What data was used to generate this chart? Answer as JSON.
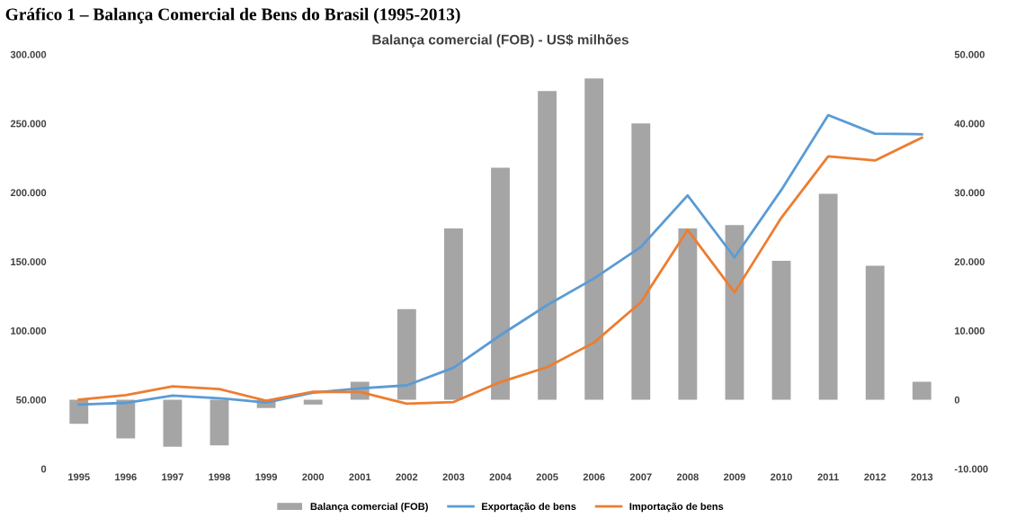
{
  "chart_data": {
    "type": "bar",
    "title": "Balança comercial (FOB) - US$ milhões",
    "annotations": [
      "Gráfico 1 – Balança Comercial de Bens do Brasil (1995-2013)"
    ],
    "categories": [
      "1995",
      "1996",
      "1997",
      "1998",
      "1999",
      "2000",
      "2001",
      "2002",
      "2003",
      "2004",
      "2005",
      "2006",
      "2007",
      "2008",
      "2009",
      "2010",
      "2011",
      "2012",
      "2013"
    ],
    "series": [
      {
        "name": "Balança comercial (FOB)",
        "axis": "y2",
        "color": "#a5a5a5",
        "values": [
          -3500,
          -5600,
          -6800,
          -6600,
          -1200,
          -700,
          2600,
          13100,
          24800,
          33600,
          44700,
          46500,
          40000,
          24800,
          25300,
          20100,
          29800,
          19400,
          2600
        ]
      },
      {
        "name": "Exportação de bens",
        "type": "line",
        "axis": "y",
        "color": "#5b9bd5",
        "values": [
          46500,
          47700,
          53000,
          51100,
          48000,
          55100,
          58200,
          60400,
          73200,
          96700,
          118500,
          137800,
          160600,
          197900,
          153000,
          201900,
          256000,
          242600,
          242200
        ]
      },
      {
        "name": "Importação de bens",
        "type": "line",
        "axis": "y",
        "color": "#ed7d31",
        "values": [
          50000,
          53300,
          59700,
          57700,
          49300,
          55800,
          55600,
          47200,
          48300,
          62800,
          73600,
          91400,
          120600,
          173000,
          127700,
          181800,
          226200,
          223200,
          239700
        ]
      }
    ],
    "ylim": [
      0,
      300000
    ],
    "yticks": [
      {
        "value": 0,
        "label": "0"
      },
      {
        "value": 50000,
        "label": "50.000"
      },
      {
        "value": 100000,
        "label": "100.000"
      },
      {
        "value": 150000,
        "label": "150.000"
      },
      {
        "value": 200000,
        "label": "200.000"
      },
      {
        "value": 250000,
        "label": "250.000"
      },
      {
        "value": 300000,
        "label": "300.000"
      }
    ],
    "y2lim": [
      -10000,
      50000
    ],
    "y2ticks": [
      {
        "value": -10000,
        "label": "-10.000"
      },
      {
        "value": 0,
        "label": "0"
      },
      {
        "value": 10000,
        "label": "10.000"
      },
      {
        "value": 20000,
        "label": "20.000"
      },
      {
        "value": 30000,
        "label": "30.000"
      },
      {
        "value": 40000,
        "label": "40.000"
      },
      {
        "value": 50000,
        "label": "50.000"
      }
    ],
    "legend": "bottom",
    "grid": false
  }
}
